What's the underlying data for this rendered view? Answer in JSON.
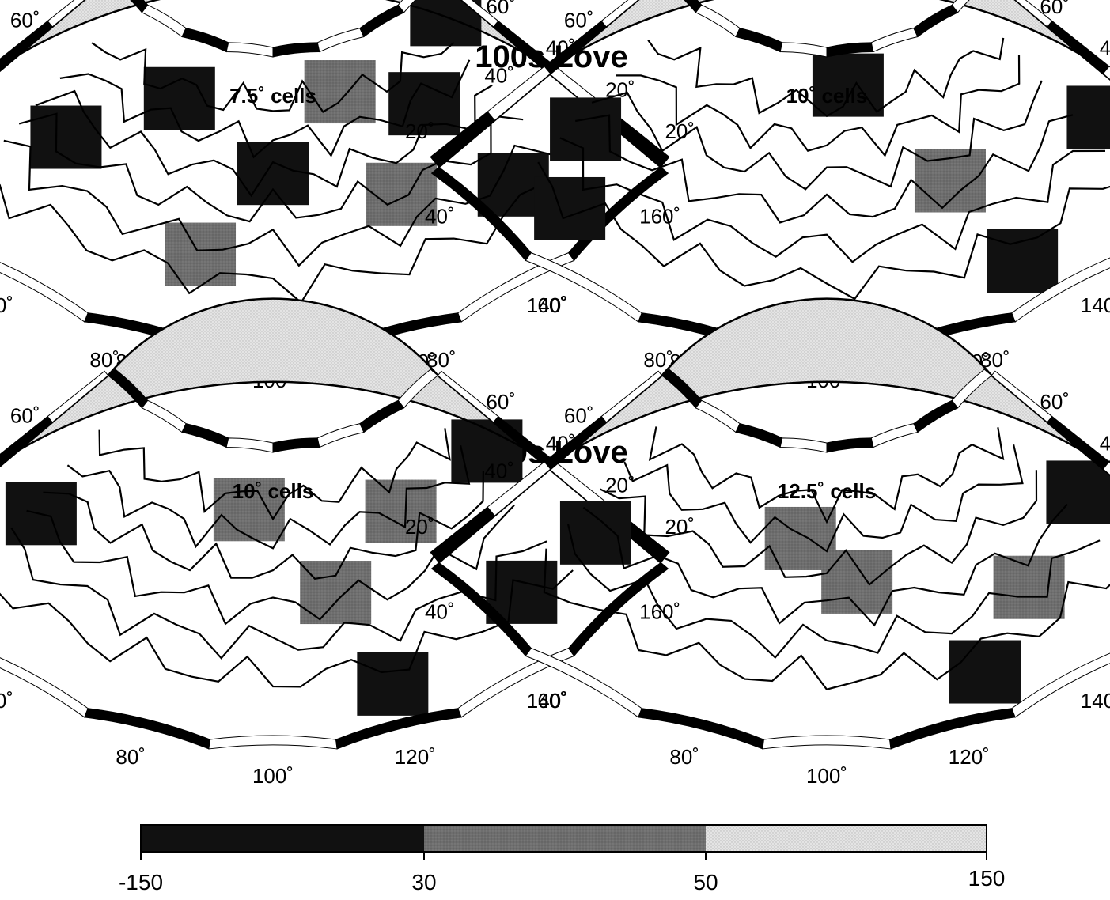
{
  "figure": {
    "row_titles": [
      "100s Love",
      "150s Love"
    ],
    "panels": [
      {
        "title": "7.5˚ cells",
        "row": 0,
        "col": 0,
        "left_lat_labels": [
          "80˚",
          "60˚",
          "40˚",
          "20˚",
          "20˚"
        ],
        "right_lat_labels": [
          "80˚",
          "60˚",
          "40˚",
          "20˚"
        ],
        "lon_labels": [
          "40˚",
          "60˚",
          "80˚",
          "100˚",
          "120˚",
          "140˚",
          "160˚"
        ]
      },
      {
        "title": "10˚ cells",
        "row": 0,
        "col": 1,
        "left_lat_labels": [
          "80˚",
          "60˚",
          "40˚",
          "20˚",
          "20˚"
        ],
        "right_lat_labels": [
          "80˚",
          "60˚",
          "40˚",
          "20˚"
        ],
        "lon_labels": [
          "40˚",
          "60˚",
          "80˚",
          "100˚",
          "120˚",
          "140˚",
          "160˚"
        ]
      },
      {
        "title": "10˚ cells",
        "row": 1,
        "col": 0,
        "left_lat_labels": [
          "80˚",
          "60˚",
          "40˚",
          "20˚",
          "20˚"
        ],
        "right_lat_labels": [
          "80˚",
          "60˚",
          "40˚",
          "20˚"
        ],
        "lon_labels": [
          "40˚",
          "60˚",
          "80˚",
          "100˚",
          "120˚",
          "140˚",
          "160˚"
        ]
      },
      {
        "title": "12.5˚ cells",
        "row": 1,
        "col": 1,
        "left_lat_labels": [
          "80˚",
          "60˚",
          "40˚",
          "20˚",
          "20˚"
        ],
        "right_lat_labels": [
          "80˚",
          "60˚",
          "40˚",
          "20˚"
        ],
        "lon_labels": [
          "40˚",
          "60˚",
          "80˚",
          "100˚",
          "120˚",
          "140˚",
          "160˚"
        ]
      }
    ],
    "colorbar": {
      "ticks": [
        "-150",
        "30",
        "50",
        "150"
      ],
      "bins": [
        {
          "from": -150,
          "to": 30,
          "color": "#111111"
        },
        {
          "from": 30,
          "to": 50,
          "color": "#6e6e6e"
        },
        {
          "from": 50,
          "to": 150,
          "color": "#e0e0e0"
        }
      ]
    },
    "colors": {
      "dark": "#111111",
      "medium": "#6e6e6e",
      "light": "#e0e0e0",
      "coast": "#000000",
      "plate": "#bdbdbd"
    }
  }
}
